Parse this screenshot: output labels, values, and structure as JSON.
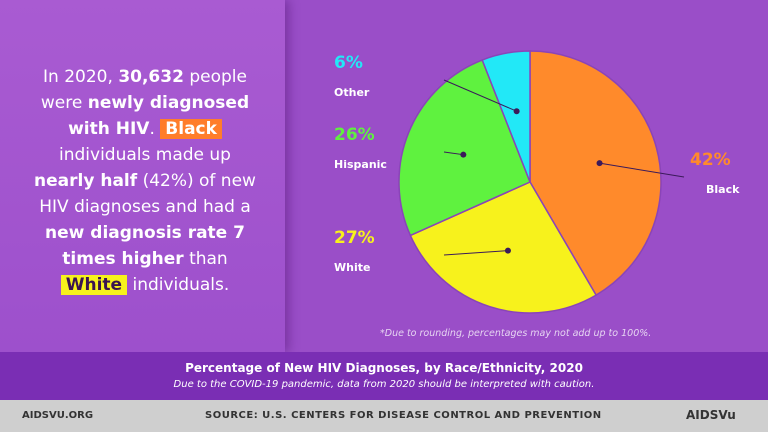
{
  "callout": [
    "In 2020,",
    "30,632",
    "people were",
    "newly diagnosed with HIV",
    ".",
    "Black",
    "individuals made up",
    "nearly half",
    "(42%) of new HIV diagnoses and had a",
    "new diagnosis rate 7 times higher",
    "than",
    "White",
    "individuals."
  ],
  "chart_data": {
    "type": "pie",
    "title": "Percentage of New HIV Diagnoses, by Race/Ethnicity, 2020",
    "subtitle": "Due to the COVID-19 pandemic, data from 2020 should be interpreted with caution.",
    "note": "*Due to rounding, percentages may not add up to 100%.",
    "categories": [
      "Black",
      "White",
      "Hispanic",
      "Other"
    ],
    "values": [
      42,
      27,
      26,
      6
    ],
    "value_labels": [
      "42%",
      "27%",
      "26%",
      "6%"
    ],
    "colors": [
      "#ff8a2b",
      "#f7f21c",
      "#5ff23f",
      "#22e8f7"
    ]
  },
  "footer": {
    "site": "AIDSVU.ORG",
    "source": "SOURCE: U.S. CENTERS FOR DISEASE CONTROL AND PREVENTION",
    "logo": "AIDSVu"
  }
}
